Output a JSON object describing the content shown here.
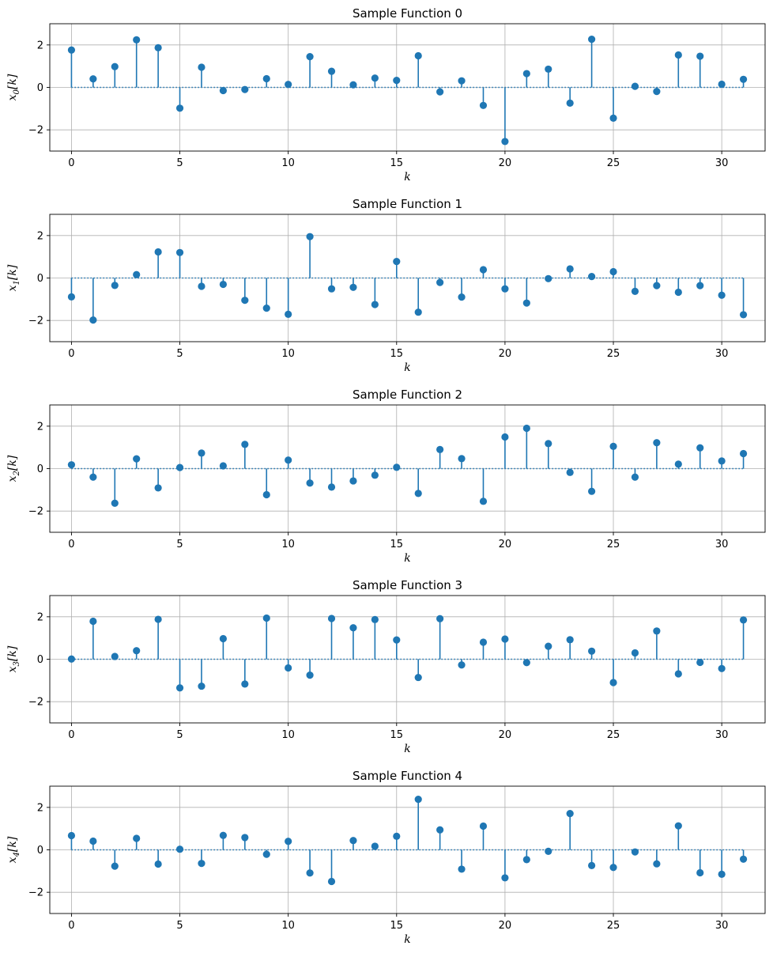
{
  "chart_data": [
    {
      "type": "stem",
      "title": "Sample Function 0",
      "xlabel": "k",
      "ylabel": "x_0[k]",
      "xlim": [
        -1,
        32
      ],
      "ylim": [
        -3,
        3
      ],
      "xticks": [
        0,
        5,
        10,
        15,
        20,
        25,
        30
      ],
      "yticks": [
        -2,
        0,
        2
      ],
      "grid": true,
      "x": [
        0,
        1,
        2,
        3,
        4,
        5,
        6,
        7,
        8,
        9,
        10,
        11,
        12,
        13,
        14,
        15,
        16,
        17,
        18,
        19,
        20,
        21,
        22,
        23,
        24,
        25,
        26,
        27,
        28,
        29,
        30,
        31
      ],
      "values": [
        1.76,
        0.4,
        0.98,
        2.24,
        1.87,
        -0.98,
        0.95,
        -0.15,
        -0.1,
        0.41,
        0.14,
        1.45,
        0.76,
        0.12,
        0.44,
        0.33,
        1.49,
        -0.21,
        0.31,
        -0.85,
        -2.55,
        0.65,
        0.86,
        -0.74,
        2.27,
        -1.45,
        0.05,
        -0.19,
        1.53,
        1.47,
        0.15,
        0.38
      ]
    },
    {
      "type": "stem",
      "title": "Sample Function 1",
      "xlabel": "k",
      "ylabel": "x_1[k]",
      "xlim": [
        -1,
        32
      ],
      "ylim": [
        -3,
        3
      ],
      "xticks": [
        0,
        5,
        10,
        15,
        20,
        25,
        30
      ],
      "yticks": [
        -2,
        0,
        2
      ],
      "grid": true,
      "x": [
        0,
        1,
        2,
        3,
        4,
        5,
        6,
        7,
        8,
        9,
        10,
        11,
        12,
        13,
        14,
        15,
        16,
        17,
        18,
        19,
        20,
        21,
        22,
        23,
        24,
        25,
        26,
        27,
        28,
        29,
        30,
        31
      ],
      "values": [
        -0.89,
        -1.98,
        -0.35,
        0.16,
        1.23,
        1.2,
        -0.39,
        -0.3,
        -1.05,
        -1.42,
        -1.71,
        1.95,
        -0.51,
        -0.44,
        -1.25,
        0.78,
        -1.61,
        -0.21,
        -0.9,
        0.39,
        -0.51,
        -1.18,
        -0.03,
        0.43,
        0.07,
        0.3,
        -0.63,
        -0.36,
        -0.67,
        -0.36,
        -0.81,
        -1.73
      ]
    },
    {
      "type": "stem",
      "title": "Sample Function 2",
      "xlabel": "k",
      "ylabel": "x_2[k]",
      "xlim": [
        -1,
        32
      ],
      "ylim": [
        -3,
        3
      ],
      "xticks": [
        0,
        5,
        10,
        15,
        20,
        25,
        30
      ],
      "yticks": [
        -2,
        0,
        2
      ],
      "grid": true,
      "x": [
        0,
        1,
        2,
        3,
        4,
        5,
        6,
        7,
        8,
        9,
        10,
        11,
        12,
        13,
        14,
        15,
        16,
        17,
        18,
        19,
        20,
        21,
        22,
        23,
        24,
        25,
        26,
        27,
        28,
        29,
        30,
        31
      ],
      "values": [
        0.18,
        -0.4,
        -1.63,
        0.46,
        -0.91,
        0.05,
        0.73,
        0.13,
        1.14,
        -1.23,
        0.4,
        -0.68,
        -0.87,
        -0.58,
        -0.31,
        0.06,
        -1.17,
        0.9,
        0.47,
        -1.54,
        1.49,
        1.9,
        1.18,
        -0.18,
        -1.07,
        1.05,
        -0.4,
        1.22,
        0.21,
        0.98,
        0.36,
        0.71
      ]
    },
    {
      "type": "stem",
      "title": "Sample Function 3",
      "xlabel": "k",
      "ylabel": "x_3[k]",
      "xlim": [
        -1,
        32
      ],
      "ylim": [
        -3,
        3
      ],
      "xticks": [
        0,
        5,
        10,
        15,
        20,
        25,
        30
      ],
      "yticks": [
        -2,
        0,
        2
      ],
      "grid": true,
      "x": [
        0,
        1,
        2,
        3,
        4,
        5,
        6,
        7,
        8,
        9,
        10,
        11,
        12,
        13,
        14,
        15,
        16,
        17,
        18,
        19,
        20,
        21,
        22,
        23,
        24,
        25,
        26,
        27,
        28,
        29,
        30,
        31
      ],
      "values": [
        0.01,
        1.79,
        0.13,
        0.4,
        1.88,
        -1.35,
        -1.27,
        0.97,
        -1.17,
        1.94,
        -0.41,
        -0.75,
        1.92,
        1.48,
        1.87,
        0.91,
        -0.86,
        1.91,
        -0.27,
        0.8,
        0.95,
        -0.16,
        0.61,
        0.92,
        0.38,
        -1.1,
        0.3,
        1.33,
        -0.69,
        -0.15,
        -0.44,
        1.85
      ]
    },
    {
      "type": "stem",
      "title": "Sample Function 4",
      "xlabel": "k",
      "ylabel": "x_4[k]",
      "xlim": [
        -1,
        32
      ],
      "ylim": [
        -3,
        3
      ],
      "xticks": [
        0,
        5,
        10,
        15,
        20,
        25,
        30
      ],
      "yticks": [
        -2,
        0,
        2
      ],
      "grid": true,
      "x": [
        0,
        1,
        2,
        3,
        4,
        5,
        6,
        7,
        8,
        9,
        10,
        11,
        12,
        13,
        14,
        15,
        16,
        17,
        18,
        19,
        20,
        21,
        22,
        23,
        24,
        25,
        26,
        27,
        28,
        29,
        30,
        31
      ],
      "values": [
        0.67,
        0.41,
        -0.77,
        0.54,
        -0.67,
        0.03,
        -0.64,
        0.68,
        0.58,
        -0.21,
        0.4,
        -1.09,
        -1.49,
        0.44,
        0.17,
        0.64,
        2.38,
        0.94,
        -0.91,
        1.12,
        -1.32,
        -0.46,
        -0.07,
        1.71,
        -0.74,
        -0.83,
        -0.1,
        -0.66,
        1.13,
        -1.08,
        -1.15,
        -0.44
      ]
    }
  ],
  "colors": {
    "stem": "#1f77b4",
    "grid": "#b0b0b0",
    "axes": "#000000"
  }
}
